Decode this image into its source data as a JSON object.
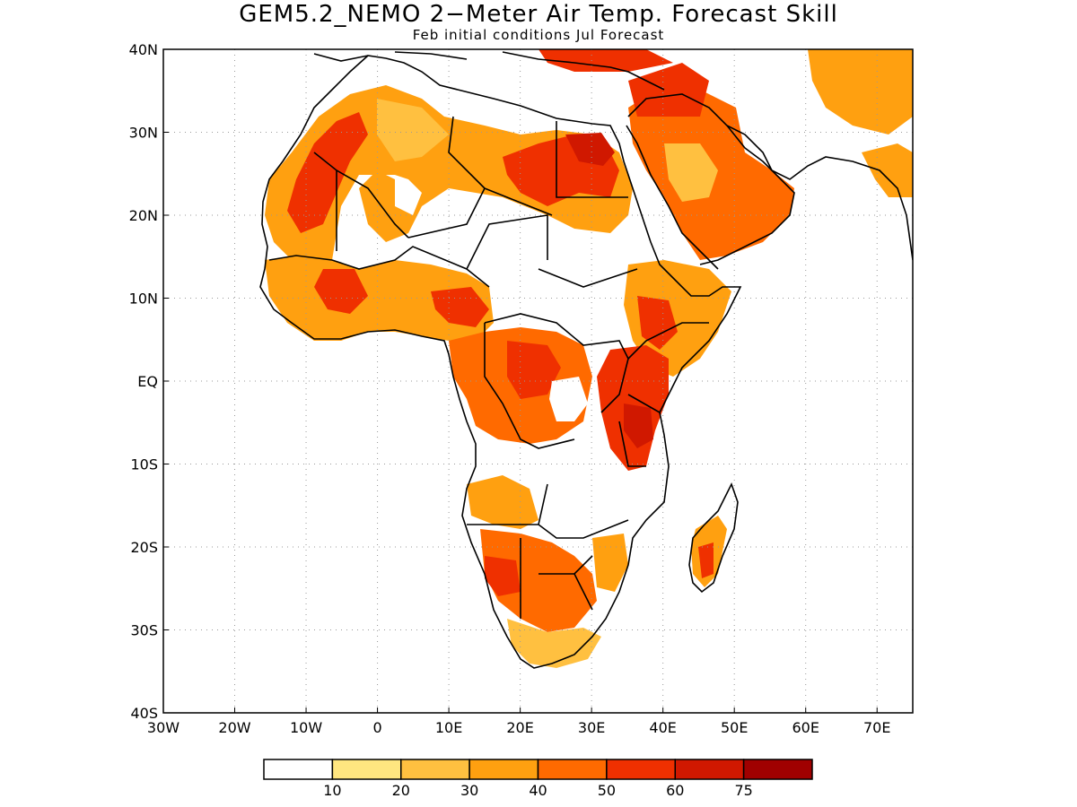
{
  "header": {
    "title": "GEM5.2_NEMO 2−Meter Air Temp. Forecast Skill",
    "subtitle": "Feb initial conditions  Jul Forecast"
  },
  "map": {
    "extent": {
      "lon_min": -30,
      "lon_max": 75,
      "lat_min": -40,
      "lat_max": 40
    },
    "lat_labels": [
      "40N",
      "30N",
      "20N",
      "10N",
      "EQ",
      "10S",
      "20S",
      "30S",
      "40S"
    ],
    "lon_labels": [
      "30W",
      "20W",
      "10W",
      "0",
      "10E",
      "20E",
      "30E",
      "40E",
      "50E",
      "60E",
      "70E"
    ],
    "grid": "dotted"
  },
  "colorbar": {
    "colors": [
      "#ffffff",
      "#ffe680",
      "#ffc040",
      "#ffa010",
      "#ff6a00",
      "#ef3000",
      "#d01800",
      "#a00000"
    ],
    "labels": [
      "10",
      "20",
      "30",
      "40",
      "50",
      "60",
      "75"
    ]
  }
}
